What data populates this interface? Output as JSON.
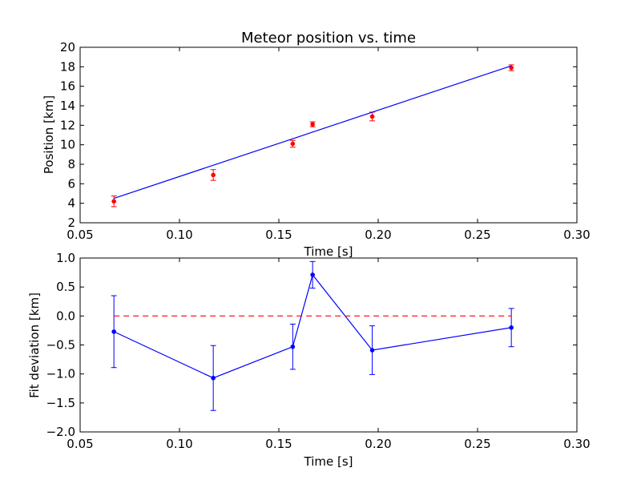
{
  "colors": {
    "measured": "#ff0000",
    "fit": "#0000ff",
    "deviation": "#0000ff",
    "zero_line": "#ff0000",
    "axes": "#000000",
    "background": "#ffffff"
  },
  "chart_data": [
    {
      "type": "scatter",
      "title": "Meteor position vs. time",
      "xlabel": "Time [s]",
      "ylabel": "Position [km]",
      "xlim": [
        0.05,
        0.3
      ],
      "ylim": [
        2,
        20
      ],
      "xticks": [
        0.05,
        0.1,
        0.15,
        0.2,
        0.25,
        0.3
      ],
      "xtick_labels": [
        "0.05",
        "0.10",
        "0.15",
        "0.20",
        "0.25",
        "0.30"
      ],
      "yticks": [
        2,
        4,
        6,
        8,
        10,
        12,
        14,
        16,
        18,
        20
      ],
      "ytick_labels": [
        "2",
        "4",
        "6",
        "8",
        "10",
        "12",
        "14",
        "16",
        "18",
        "20"
      ],
      "grid": false,
      "series": [
        {
          "type": "errorbar",
          "color": "#ff0000",
          "x": [
            0.067,
            0.117,
            0.157,
            0.167,
            0.197,
            0.267
          ],
          "y": [
            4.2,
            6.9,
            10.1,
            12.1,
            12.9,
            17.9
          ],
          "yerr": [
            0.55,
            0.55,
            0.35,
            0.25,
            0.45,
            0.3
          ]
        },
        {
          "type": "line",
          "color": "#0000ff",
          "x": [
            0.067,
            0.267
          ],
          "y": [
            4.5,
            18.1
          ]
        }
      ]
    },
    {
      "type": "line",
      "title": "",
      "xlabel": "Time [s]",
      "ylabel": "Fit deviation [km]",
      "xlim": [
        0.05,
        0.3
      ],
      "ylim": [
        -2.0,
        1.0
      ],
      "xticks": [
        0.05,
        0.1,
        0.15,
        0.2,
        0.25,
        0.3
      ],
      "xtick_labels": [
        "0.05",
        "0.10",
        "0.15",
        "0.20",
        "0.25",
        "0.30"
      ],
      "yticks": [
        -2.0,
        -1.5,
        -1.0,
        -0.5,
        0.0,
        0.5,
        1.0
      ],
      "ytick_labels": [
        "−2.0",
        "−1.5",
        "−1.0",
        "−0.5",
        "0.0",
        "0.5",
        "1.0"
      ],
      "grid": false,
      "series": [
        {
          "type": "errorbar",
          "color": "#0000ff",
          "x": [
            0.067,
            0.117,
            0.157,
            0.167,
            0.197,
            0.267
          ],
          "y": [
            -0.27,
            -1.07,
            -0.53,
            0.71,
            -0.59,
            -0.2
          ],
          "yerr": [
            0.62,
            0.56,
            0.39,
            0.23,
            0.42,
            0.33
          ]
        },
        {
          "type": "hline",
          "color": "#ff0000",
          "dashed": true,
          "y": 0.0
        }
      ]
    }
  ]
}
